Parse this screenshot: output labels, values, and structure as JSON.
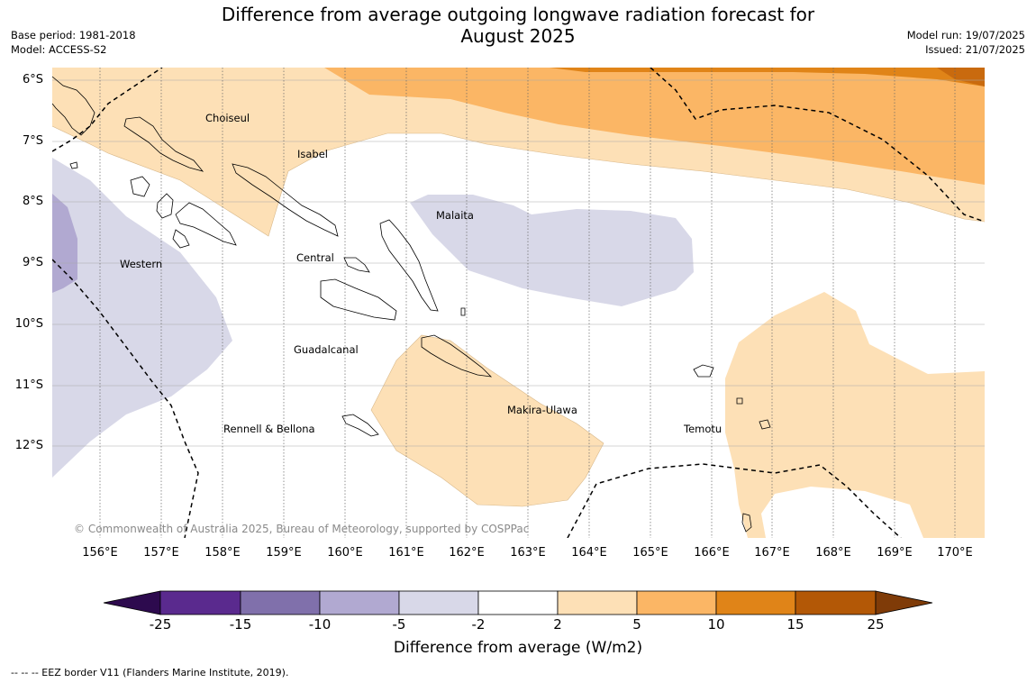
{
  "title_line1": "Difference from average outgoing longwave radiation forecast for",
  "title_line2": "August 2025",
  "base_period": "Base period: 1981-2018",
  "model": "Model: ACCESS-S2",
  "model_run": "Model run: 19/07/2025",
  "issued": "Issued: 21/07/2025",
  "lat_labels": [
    "6°S",
    "7°S",
    "8°S",
    "9°S",
    "10°S",
    "11°S",
    "12°S"
  ],
  "lon_labels": [
    "156°E",
    "157°E",
    "158°E",
    "159°E",
    "160°E",
    "161°E",
    "162°E",
    "163°E",
    "164°E",
    "165°E",
    "166°E",
    "167°E",
    "168°E",
    "169°E",
    "170°E"
  ],
  "regions": {
    "choiseul": "Choiseul",
    "isabel": "Isabel",
    "malaita": "Malaita",
    "central": "Central",
    "western": "Western",
    "guadalcanal": "Guadalcanal",
    "makira": "Makira-Ulawa",
    "temotu": "Temotu",
    "rennell": "Rennell & Bellona"
  },
  "copyright": "© Commonwealth of Australia 2025, Bureau of Meteorology, supported by COSPPac",
  "colorbar": {
    "ticks": [
      "-25",
      "-15",
      "-10",
      "-5",
      "-2",
      "2",
      "5",
      "10",
      "15",
      "25"
    ],
    "colors": [
      "#4b1b7a",
      "#5a2a8e",
      "#8070ab",
      "#b1a9d1",
      "#d8d8e8",
      "#ffffff",
      "#fde0b6",
      "#fbb665",
      "#e08418",
      "#b35806",
      "#7f3b08"
    ],
    "title": "Difference from average (W/m2)"
  },
  "footnote": "--  --  -- EEZ border V11 (Flanders Marine Institute, 2019)."
}
